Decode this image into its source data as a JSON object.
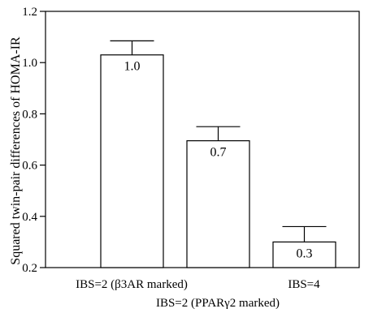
{
  "chart_data": {
    "type": "bar",
    "ylabel": "Squared twin-pair differences of HOMA-IR",
    "ylim": [
      0.2,
      1.2
    ],
    "yticks": [
      "0.2",
      "0.4",
      "0.6",
      "0.8",
      "1.0",
      "1.2"
    ],
    "grid": false,
    "categories": [
      "IBS=2 (β3AR marked)",
      "IBS=2 (PPARγ2 marked)",
      "IBS=4"
    ],
    "values": [
      1.03,
      0.695,
      0.3
    ],
    "error_upper": [
      1.085,
      0.75,
      0.36
    ],
    "data_labels": [
      "1.0",
      "0.7",
      "0.3"
    ],
    "colors": {
      "bar_fill": "#ffffff",
      "stroke": "#000000"
    }
  }
}
